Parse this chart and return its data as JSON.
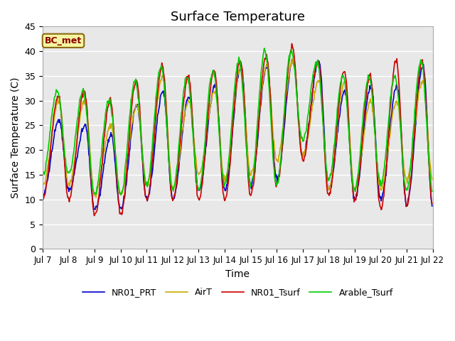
{
  "title": "Surface Temperature",
  "xlabel": "Time",
  "ylabel": "Surface Temperature (C)",
  "ylim": [
    0,
    45
  ],
  "annotation": "BC_met",
  "legend": [
    "NR01_Tsurf",
    "NR01_PRT",
    "Arable_Tsurf",
    "AirT"
  ],
  "colors": [
    "#cc0000",
    "#0000cc",
    "#00cc00",
    "#ccaa00"
  ],
  "xtick_labels": [
    "Jul 7",
    "Jul 8",
    "Jul 9",
    "Jul 10",
    "Jul 11",
    "Jul 12",
    "Jul 13",
    "Jul 14",
    "Jul 15",
    "Jul 16",
    "Jul 17",
    "Jul 18",
    "Jul 19",
    "Jul 20",
    "Jul 21",
    "Jul 22"
  ],
  "ytick_values": [
    0,
    5,
    10,
    15,
    20,
    25,
    30,
    35,
    40,
    45
  ],
  "background_color": "#e8e8e8",
  "fig_background": "#ffffff",
  "grid_color": "#ffffff",
  "line_width": 1.2,
  "day_peaks_red": [
    31,
    32,
    30,
    34,
    37,
    35,
    36,
    38,
    39,
    41,
    38,
    36,
    35,
    38,
    38
  ],
  "day_troughs_red": [
    10,
    10,
    7,
    7,
    10,
    10,
    10,
    10,
    11,
    13,
    18,
    11,
    10,
    8,
    9
  ],
  "day_peaks_blue": [
    26,
    25,
    23,
    29,
    32,
    31,
    33,
    37,
    37,
    38,
    38,
    32,
    33,
    33,
    37
  ],
  "day_troughs_blue": [
    11,
    12,
    8,
    8,
    10,
    10,
    12,
    12,
    13,
    14,
    19,
    12,
    10,
    10,
    9
  ],
  "day_peaks_green": [
    32,
    32,
    30,
    34,
    37,
    35,
    36,
    38,
    40,
    40,
    38,
    35,
    35,
    35,
    38
  ],
  "day_troughs_green": [
    15,
    15,
    11,
    11,
    13,
    12,
    12,
    13,
    13,
    13,
    22,
    14,
    12,
    13,
    12
  ],
  "day_peaks_orange": [
    30,
    30,
    25,
    29,
    35,
    30,
    32,
    37,
    37,
    38,
    34,
    34,
    30,
    30,
    34
  ],
  "day_troughs_orange": [
    13,
    13,
    11,
    11,
    13,
    12,
    15,
    14,
    15,
    18,
    19,
    12,
    12,
    12,
    14
  ]
}
